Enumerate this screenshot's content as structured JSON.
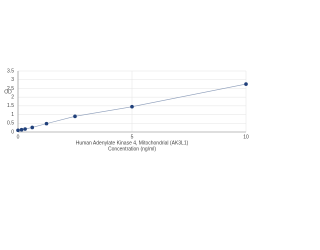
{
  "chart_data": {
    "type": "scatter",
    "x_label_lines": [
      "Human Adenylate Kinase 4, Mitochondrial (AK3L1)",
      "Concentration (ng/ml)"
    ],
    "y_label": "OD",
    "x": [
      0,
      0.156,
      0.312,
      0.625,
      1.25,
      2.5,
      5,
      10
    ],
    "series": [
      {
        "color": "#1f3f7a",
        "values": [
          0.1,
          0.13,
          0.17,
          0.26,
          0.48,
          0.9,
          1.45,
          2.75
        ]
      }
    ],
    "xlim": [
      0,
      10
    ],
    "xticks": [
      0,
      5,
      10
    ],
    "ylim": [
      0,
      3.5
    ],
    "yticks": [
      0,
      0.5,
      1,
      1.5,
      2,
      2.5,
      3,
      3.5
    ],
    "grid": true
  }
}
